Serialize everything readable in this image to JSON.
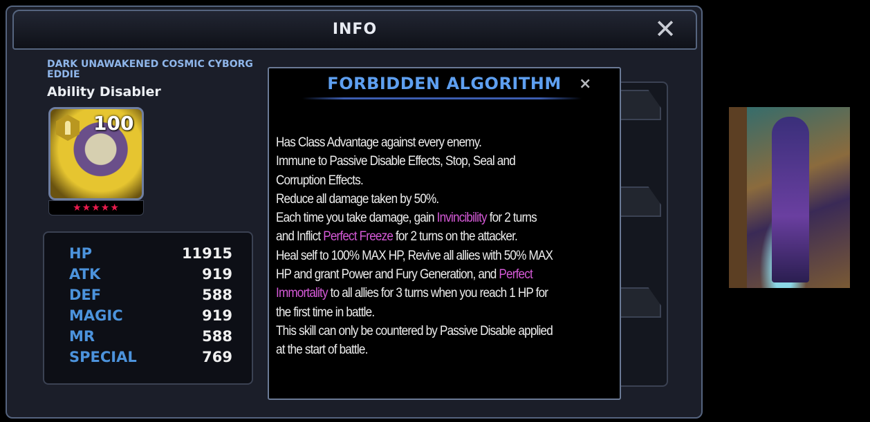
{
  "dialog": {
    "title": "INFO",
    "close_icon": "close-x-icon"
  },
  "hero": {
    "name": "DARK UNAWAKENED COSMIC CYBORG EDDIE",
    "class": "Ability Disabler",
    "level": "100",
    "stars": 5,
    "stars_text": "★★★★★",
    "class_badge_icon": "bullet-hexagon-icon",
    "star_color": "#ea1b4d"
  },
  "stats": [
    {
      "label": "HP",
      "value": "11915"
    },
    {
      "label": "ATK",
      "value": "919"
    },
    {
      "label": "DEF",
      "value": "588"
    },
    {
      "label": "MAGIC",
      "value": "919"
    },
    {
      "label": "MR",
      "value": "588"
    },
    {
      "label": "SPECIAL",
      "value": "769"
    }
  ],
  "skill_popup": {
    "title": "FORBIDDEN ALGORITHM",
    "close_label": "×",
    "highlight_color": "#d65ad8",
    "lines": [
      [
        {
          "text": "Has Class Advantage against every enemy."
        }
      ],
      [
        {
          "text": "Immune to Passive Disable Effects, Stop, Seal and"
        }
      ],
      [
        {
          "text": "Corruption Effects."
        }
      ],
      [
        {
          "text": "Reduce all damage taken by 50%."
        }
      ],
      [
        {
          "text": "Each time you take damage, gain "
        },
        {
          "text": "Invincibility",
          "hl": true
        },
        {
          "text": " for 2 turns"
        }
      ],
      [
        {
          "text": "and Inflict "
        },
        {
          "text": "Perfect Freeze",
          "hl": true
        },
        {
          "text": " for 2 turns on the attacker."
        }
      ],
      [
        {
          "text": "Heal self to 100% MAX HP, Revive all allies with 50% MAX"
        }
      ],
      [
        {
          "text": "HP and grant Power and Fury Generation, and "
        },
        {
          "text": "Perfect",
          "hl": true
        }
      ],
      [
        {
          "text": "Immortality",
          "hl": true
        },
        {
          "text": " to all allies for 3 turns when you reach 1 HP for"
        }
      ],
      [
        {
          "text": "the first time in battle."
        }
      ],
      [
        {
          "text": "This skill can only be countered by Passive Disable applied"
        }
      ],
      [
        {
          "text": "at the start of battle."
        }
      ]
    ]
  }
}
